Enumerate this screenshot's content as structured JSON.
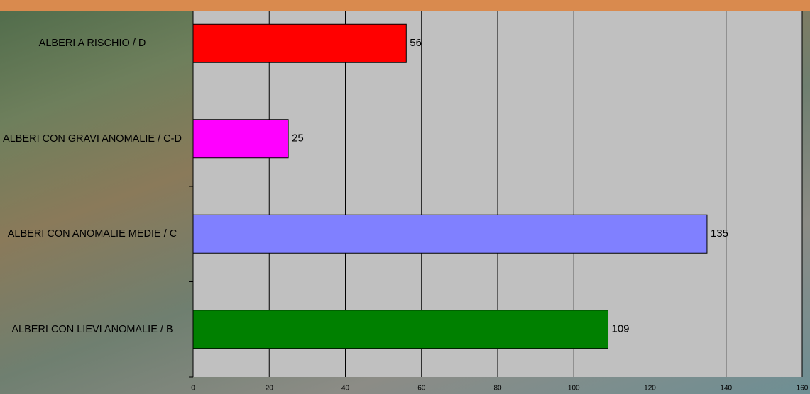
{
  "chart_data": {
    "type": "bar",
    "orientation": "horizontal",
    "categories": [
      "ALBERI A RISCHIO / D",
      "ALBERI CON GRAVI ANOMALIE / C-D",
      "ALBERI CON ANOMALIE MEDIE / C",
      "ALBERI CON LIEVI ANOMALIE / B"
    ],
    "values": [
      56,
      25,
      135,
      109
    ],
    "colors": [
      "#ff0000",
      "#ff00ff",
      "#8080ff",
      "#008000"
    ],
    "xlim": [
      0,
      160
    ],
    "xticks": [
      0,
      20,
      40,
      60,
      80,
      100,
      120,
      140,
      160
    ],
    "grid": true
  }
}
